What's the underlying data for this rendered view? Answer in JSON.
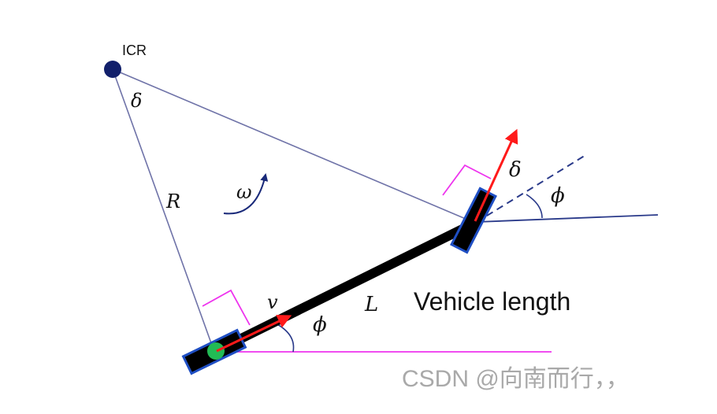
{
  "diagram": {
    "labels": {
      "icr": "ICR",
      "delta_top": "δ",
      "radius": "R",
      "omega": "ω",
      "delta_front": "δ",
      "phi_front": "ϕ",
      "velocity": "v",
      "phi_rear": "ϕ",
      "length": "L",
      "length_caption": "Vehicle length"
    },
    "watermark": "CSDN @向南而行，，",
    "colors": {
      "construction_lines": "#6f73a8",
      "icr_point": "#12206b",
      "vehicle_body": "#000000",
      "wheel_fill": "#000000",
      "wheel_outline": "#1f4fc4",
      "velocity_arrows": "#ff1a1a",
      "right_angle_marks": "#ee33ee",
      "rear_axle_point": "#22bb55",
      "watermark_text": "#a0a0a0"
    }
  }
}
